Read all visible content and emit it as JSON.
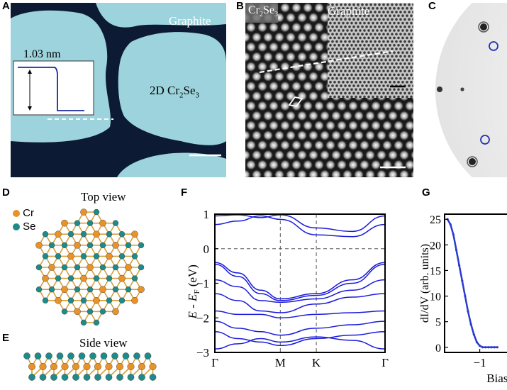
{
  "panels": {
    "A": {
      "label": "A",
      "graphite_label": "Graphite",
      "material_label_prefix": "2D Cr",
      "material_sub1": "2",
      "material_mid": "Se",
      "material_sub2": "3",
      "height_label": "1.03 nm"
    },
    "B": {
      "label": "B",
      "cr2se3_prefix": "Cr",
      "cr2se3_sub1": "2",
      "cr2se3_mid": "Se",
      "cr2se3_sub2": "3",
      "graphite_label": "Graphite"
    },
    "C": {
      "label": "C"
    },
    "D": {
      "label": "D",
      "title": "Top view",
      "legend": [
        {
          "name": "Cr",
          "color": "#e8922a"
        },
        {
          "name": "Se",
          "color": "#1f8a8a"
        }
      ]
    },
    "E": {
      "label": "E",
      "title": "Side view"
    },
    "F": {
      "label": "F",
      "ylabel_E": "E",
      "ylabel_mid": " - ",
      "ylabel_Ef": "E",
      "ylabel_sub": "F",
      "ylabel_unit": " (eV)"
    },
    "G": {
      "label": "G",
      "ylabel": "dI/dV (arb. units)",
      "xlabel": "Bias"
    }
  },
  "chart_data": [
    {
      "type": "line",
      "panel": "F",
      "xlabel": "",
      "ylabel": "E - E_F (eV)",
      "x_ticks": [
        "Γ",
        "M",
        "K",
        "Γ"
      ],
      "ylim": [
        -3,
        1
      ],
      "y_ticks": [
        "1",
        "0",
        "−1",
        "−2",
        "−3"
      ],
      "band_color": "#1a1adc",
      "series": [
        {
          "values": [
            -0.4,
            -0.7,
            -1.2,
            -1.45,
            -1.3,
            -0.9,
            -0.4
          ]
        },
        {
          "values": [
            -0.45,
            -0.8,
            -1.3,
            -1.5,
            -1.35,
            -1.0,
            -0.45
          ]
        },
        {
          "values": [
            -0.9,
            -1.1,
            -1.5,
            -1.55,
            -1.45,
            -1.2,
            -0.9
          ]
        },
        {
          "values": [
            -1.3,
            -1.5,
            -1.8,
            -1.85,
            -1.6,
            -1.4,
            -1.3
          ]
        },
        {
          "values": [
            -1.8,
            -1.9,
            -1.9,
            -2.0,
            -1.9,
            -1.85,
            -1.8
          ]
        },
        {
          "values": [
            -2.1,
            -2.3,
            -2.4,
            -2.5,
            -2.3,
            -2.2,
            -2.1
          ]
        },
        {
          "values": [
            -2.4,
            -2.6,
            -2.7,
            -2.8,
            -2.6,
            -2.5,
            -2.4
          ]
        },
        {
          "values": [
            -2.9,
            -2.75,
            -2.6,
            -2.7,
            -2.55,
            -2.65,
            -2.9
          ]
        },
        {
          "values": [
            0.7,
            0.8,
            0.95,
            0.85,
            0.4,
            0.35,
            0.7
          ]
        },
        {
          "values": [
            0.95,
            0.98,
            0.9,
            0.98,
            0.6,
            0.5,
            0.95
          ]
        }
      ],
      "x_nodes": [
        0,
        0.35,
        0.7,
        1.0,
        1.55,
        2.1,
        2.6
      ]
    },
    {
      "type": "scatter",
      "panel": "G",
      "xlabel": "Bias",
      "ylabel": "dI/dV (arb. units)",
      "y_ticks": [
        "0",
        "5",
        "10",
        "15",
        "20",
        "25"
      ],
      "ylim": [
        -1,
        26
      ],
      "x_ticks": [
        "−1"
      ],
      "color": "#2a3ad0",
      "x": [
        -1.55,
        -1.5,
        -1.45,
        -1.4,
        -1.35,
        -1.3,
        -1.25,
        -1.2,
        -1.15,
        -1.1,
        -1.05,
        -1.0,
        -0.95,
        -0.9,
        -0.85,
        -0.8,
        -0.75,
        -0.7
      ],
      "y": [
        25,
        24,
        22,
        19,
        16,
        13,
        10,
        7,
        4.5,
        2.5,
        1,
        0.3,
        0,
        0,
        0,
        0,
        0,
        0
      ]
    }
  ]
}
